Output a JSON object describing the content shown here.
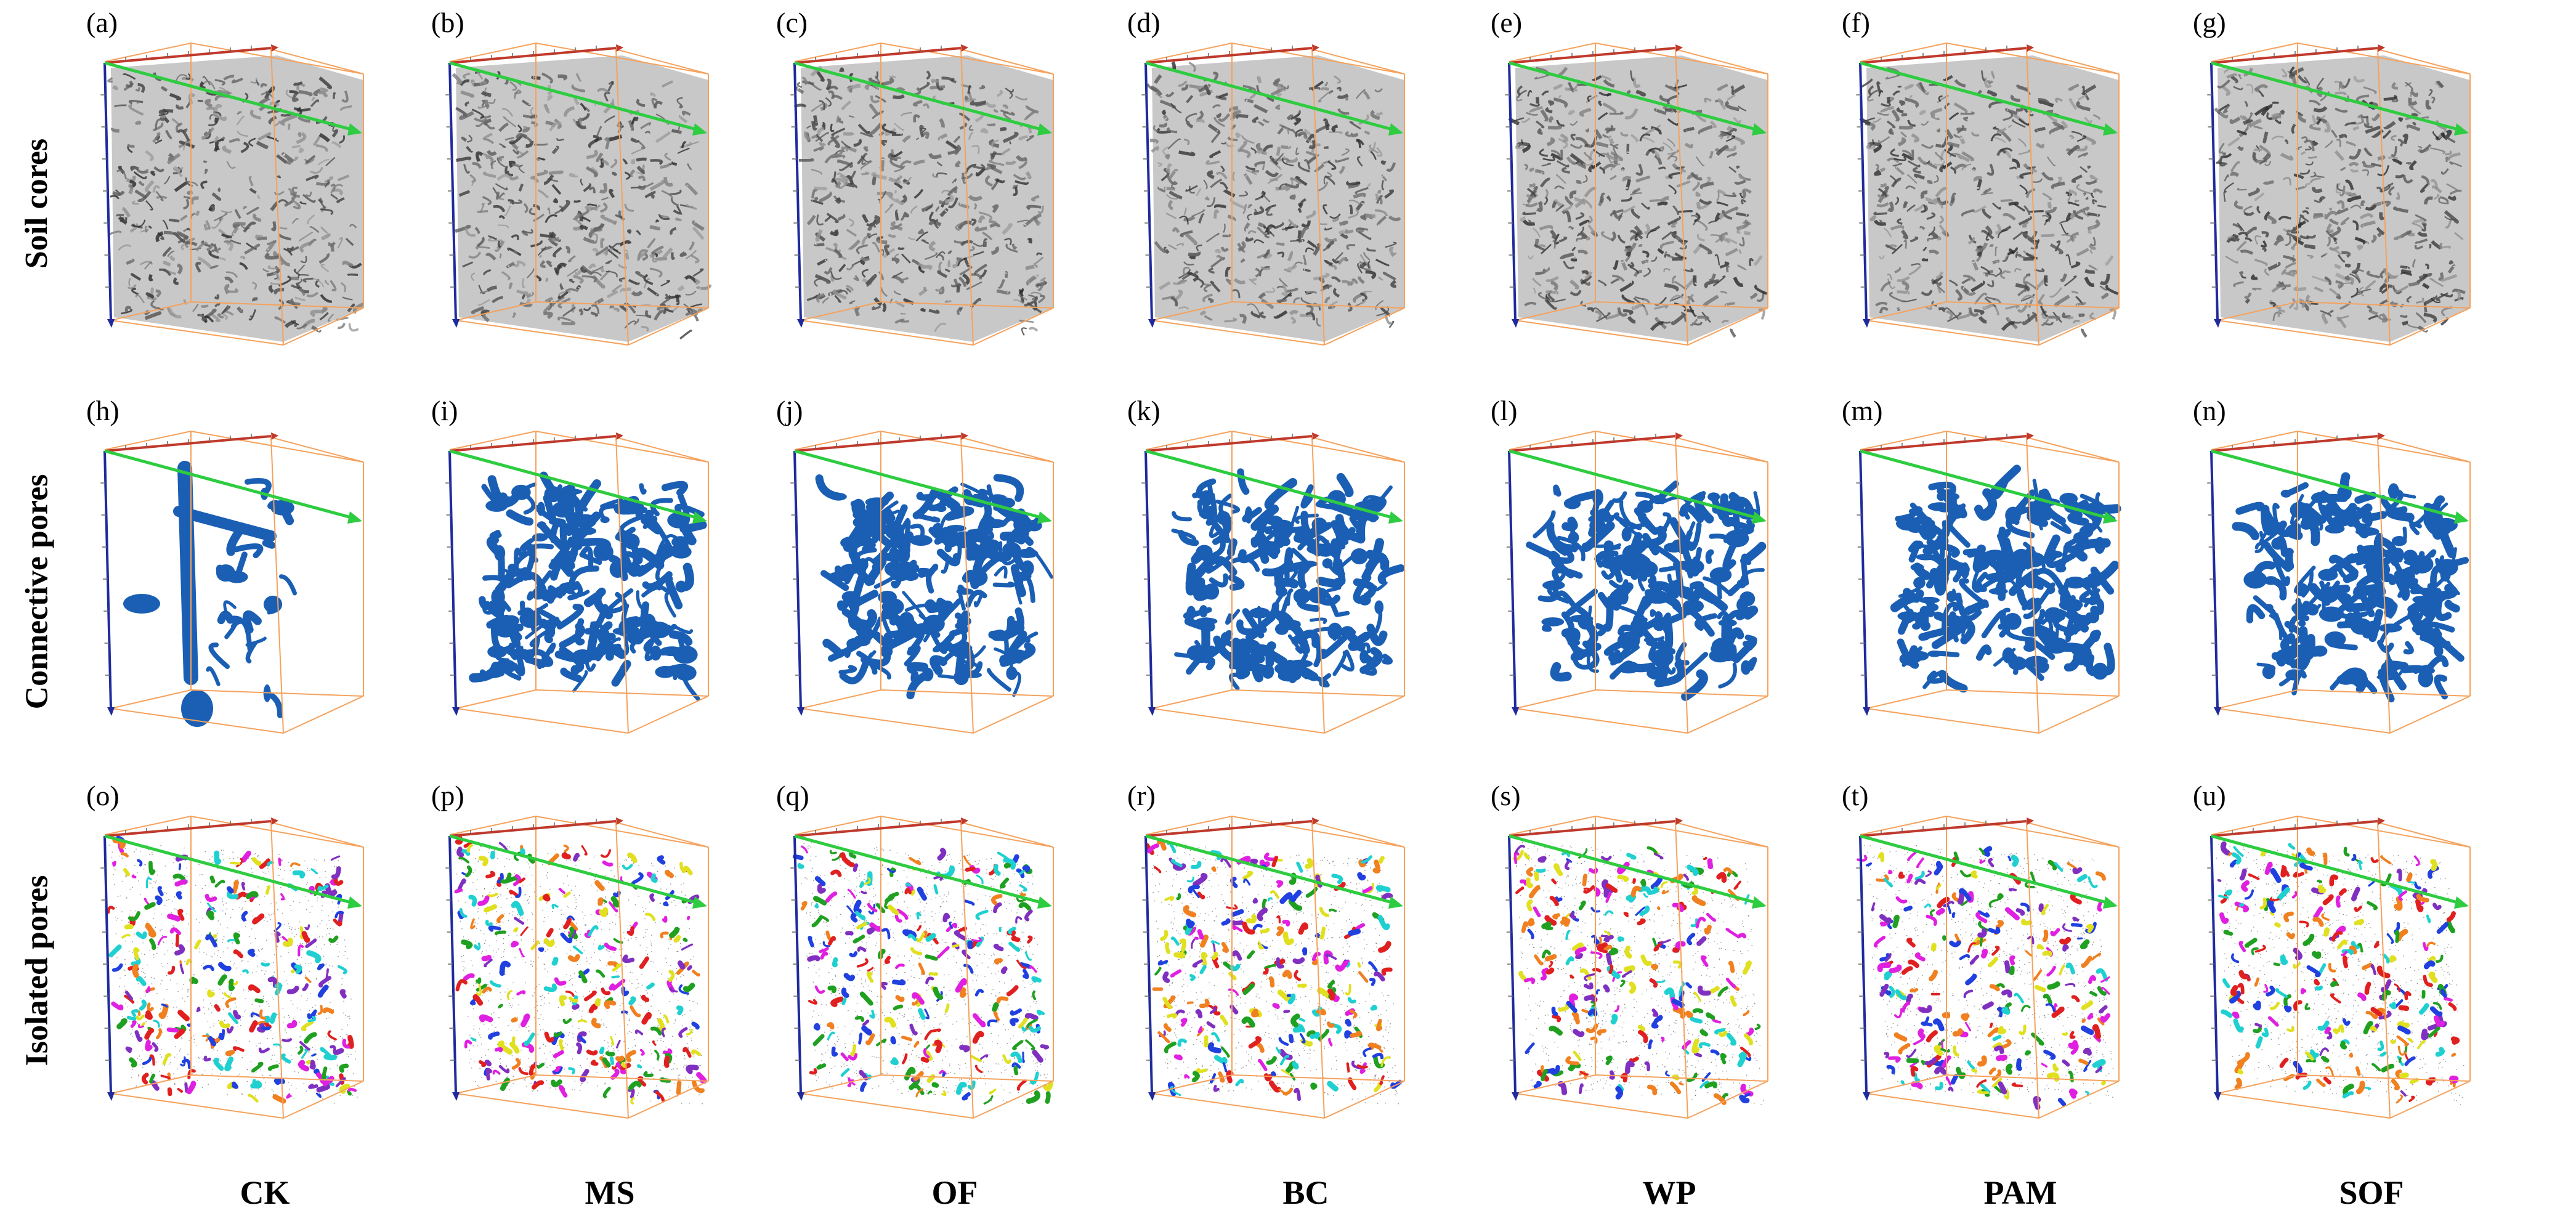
{
  "rows": [
    "Soil cores",
    "Connective pores",
    "Isolated pores"
  ],
  "columns": [
    "CK",
    "MS",
    "OF",
    "BC",
    "WP",
    "PAM",
    "SOF"
  ],
  "panel_letters": [
    [
      "(a)",
      "(b)",
      "(c)",
      "(d)",
      "(e)",
      "(f)",
      "(g)"
    ],
    [
      "(h)",
      "(i)",
      "(j)",
      "(k)",
      "(l)",
      "(m)",
      "(n)"
    ],
    [
      "(o)",
      "(p)",
      "(q)",
      "(r)",
      "(s)",
      "(t)",
      "(u)"
    ]
  ],
  "colors": {
    "cube_edge": "#f5a25d",
    "axis_x": "#c0392b",
    "axis_y": "#2ecc40",
    "axis_z": "#1f2a9c",
    "soil_core": "#555555",
    "connective_pore": "#1a5fb4",
    "isolated_palette": [
      "#e02020",
      "#20a020",
      "#2040e0",
      "#e0e020",
      "#e020e0",
      "#20d0d0",
      "#f08020",
      "#8030c0"
    ]
  }
}
